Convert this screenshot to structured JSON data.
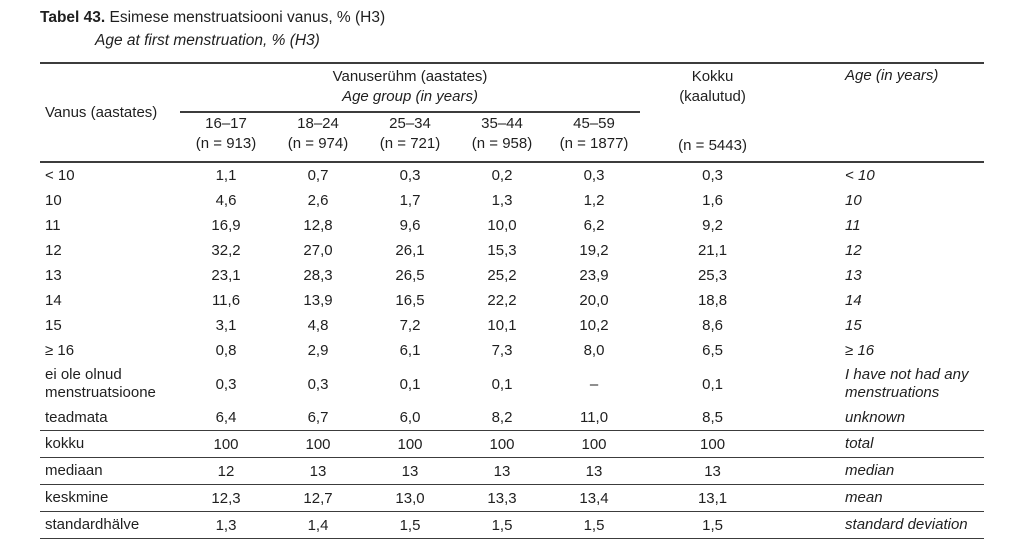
{
  "colors": {
    "background": "#ffffff",
    "text": "#1f1f1f",
    "rule": "#3c3c3c"
  },
  "title": {
    "label": "Tabel 43.",
    "text_et": "Esimese menstruatsiooni vanus, % (H3)",
    "text_en": "Age at first menstruation, % (H3)"
  },
  "table": {
    "header": {
      "row_label": "Vanus (aastates)",
      "group_label_et": "Vanuserühm (aastates)",
      "group_label_en": "Age group (in years)",
      "total_line1": "Kokku",
      "total_line2": "(kaalutud)",
      "total_n": "(n = 5443)",
      "age_label_en": "Age (in years)",
      "columns": [
        {
          "range": "16–17",
          "n": "(n = 913)"
        },
        {
          "range": "18–24",
          "n": "(n = 974)"
        },
        {
          "range": "25–34",
          "n": "(n = 721)"
        },
        {
          "range": "35–44",
          "n": "(n = 958)"
        },
        {
          "range": "45–59",
          "n": "(n = 1877)"
        }
      ]
    },
    "rows": [
      {
        "label": "< 10",
        "values": [
          "1,1",
          "0,7",
          "0,3",
          "0,2",
          "0,3"
        ],
        "total": "0,3",
        "label_en": "< 10"
      },
      {
        "label": "10",
        "values": [
          "4,6",
          "2,6",
          "1,7",
          "1,3",
          "1,2"
        ],
        "total": "1,6",
        "label_en": "10"
      },
      {
        "label": "11",
        "values": [
          "16,9",
          "12,8",
          "9,6",
          "10,0",
          "6,2"
        ],
        "total": "9,2",
        "label_en": "11"
      },
      {
        "label": "12",
        "values": [
          "32,2",
          "27,0",
          "26,1",
          "15,3",
          "19,2"
        ],
        "total": "21,1",
        "label_en": "12"
      },
      {
        "label": "13",
        "values": [
          "23,1",
          "28,3",
          "26,5",
          "25,2",
          "23,9"
        ],
        "total": "25,3",
        "label_en": "13"
      },
      {
        "label": "14",
        "values": [
          "11,6",
          "13,9",
          "16,5",
          "22,2",
          "20,0"
        ],
        "total": "18,8",
        "label_en": "14"
      },
      {
        "label": "15",
        "values": [
          "3,1",
          "4,8",
          "7,2",
          "10,1",
          "10,2"
        ],
        "total": "8,6",
        "label_en": "15"
      },
      {
        "label": "≥ 16",
        "values": [
          "0,8",
          "2,9",
          "6,1",
          "7,3",
          "8,0"
        ],
        "total": "6,5",
        "label_en": "≥ 16"
      },
      {
        "label": "ei ole olnud menstruatsioone",
        "values": [
          "0,3",
          "0,3",
          "0,1",
          "0,1",
          "–"
        ],
        "total": "0,1",
        "label_en": "I have not had any menstruations"
      },
      {
        "label": "teadmata",
        "values": [
          "6,4",
          "6,7",
          "6,0",
          "8,2",
          "11,0"
        ],
        "total": "8,5",
        "label_en": "unknown"
      }
    ],
    "summary_rows": [
      {
        "label": "kokku",
        "values": [
          "100",
          "100",
          "100",
          "100",
          "100"
        ],
        "total": "100",
        "label_en": "total"
      },
      {
        "label": "mediaan",
        "values": [
          "12",
          "13",
          "13",
          "13",
          "13"
        ],
        "total": "13",
        "label_en": "median"
      },
      {
        "label": "keskmine",
        "values": [
          "12,3",
          "12,7",
          "13,0",
          "13,3",
          "13,4"
        ],
        "total": "13,1",
        "label_en": "mean"
      },
      {
        "label": "standardhälve",
        "values": [
          "1,3",
          "1,4",
          "1,5",
          "1,5",
          "1,5"
        ],
        "total": "1,5",
        "label_en": "standard deviation"
      }
    ]
  }
}
